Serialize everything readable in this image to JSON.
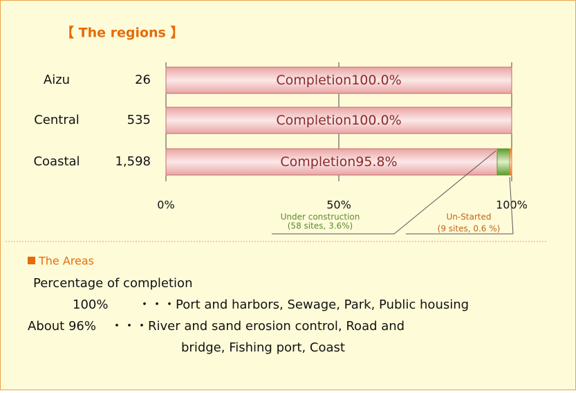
{
  "chart_data": {
    "type": "stacked-barh",
    "title": "【 The regions 】",
    "categories": [
      "Aizu",
      "Central",
      "Coastal"
    ],
    "counts": [
      "26",
      "535",
      "1,598"
    ],
    "series": [
      {
        "name": "Completion",
        "color": "#f2b8b8",
        "values": [
          100,
          100,
          95.8
        ],
        "value_labels": [
          "100.0%",
          "100.0%",
          "95.8%"
        ]
      },
      {
        "name": "Under construction",
        "color": "#6fa83c",
        "values": [
          0,
          0,
          3.6
        ]
      },
      {
        "name": "Un-Started",
        "color": "#e8791f",
        "values": [
          0,
          0,
          0.6
        ]
      }
    ],
    "annotations": [
      "(58 sites, 3.6%)",
      "(9 sites, 0.6 %)"
    ],
    "xlim": [
      0,
      100
    ],
    "xticks": [
      {
        "value": 0,
        "label": "0%"
      },
      {
        "value": 50,
        "label": "50%"
      },
      {
        "value": 100,
        "label": "100%"
      }
    ],
    "grid": true
  },
  "areas": {
    "heading": "The Areas",
    "subheading": "Percentage of completion",
    "rows": [
      {
        "label": "100%",
        "text": "・・・Port and harbors, Sewage, Park, Public housing"
      },
      {
        "label": "About  96%",
        "text": "・・・River and sand erosion control, Road and",
        "text2": "bridge, Fishing port, Coast"
      }
    ]
  }
}
